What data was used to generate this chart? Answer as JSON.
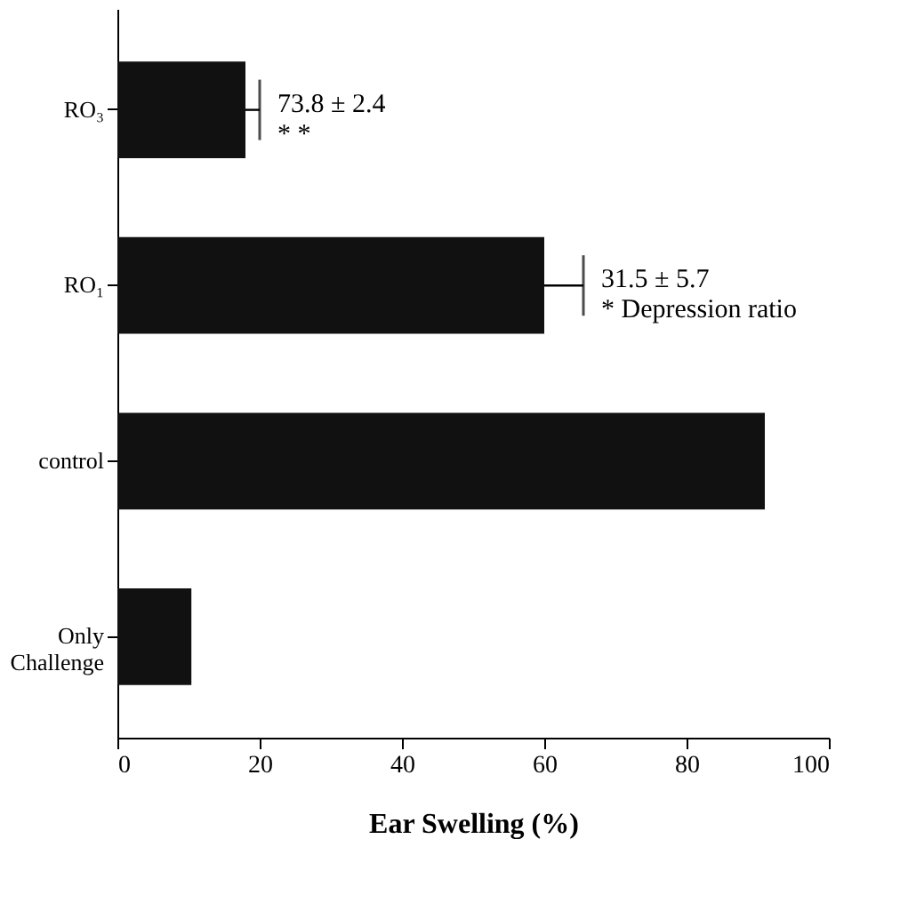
{
  "chart_data": {
    "type": "bar",
    "orientation": "horizontal",
    "xlabel": "Ear Swelling (%)",
    "categories": [
      "RO₃",
      "RO₁",
      "control",
      "Only Challenge"
    ],
    "values": [
      18,
      60,
      91,
      10.4
    ],
    "errors": [
      [
        18,
        20
      ],
      [
        60,
        65.5
      ],
      null,
      null
    ],
    "color": "#111111",
    "xlim": [
      0,
      100
    ],
    "xticks": [
      0,
      20,
      40,
      60,
      80,
      100
    ],
    "grid": false,
    "annotations": [
      "73.8 ± 2.4\n* *",
      "31.5 ± 5.7\n* Depression ratio"
    ]
  }
}
